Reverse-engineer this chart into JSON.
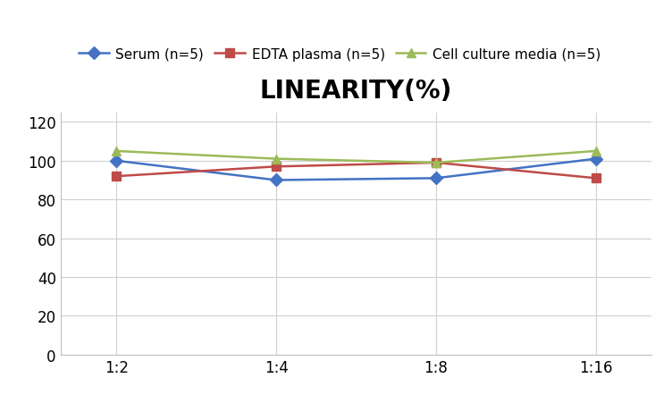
{
  "title": "LINEARITY(%)",
  "x_labels": [
    "1:2",
    "1:4",
    "1:8",
    "1:16"
  ],
  "x_positions": [
    0,
    1,
    2,
    3
  ],
  "series": [
    {
      "label": "Serum (n=5)",
      "values": [
        100,
        90,
        91,
        101
      ],
      "color": "#4472C4",
      "marker": "D",
      "marker_color": "#4472C4"
    },
    {
      "label": "EDTA plasma (n=5)",
      "values": [
        92,
        97,
        99,
        91
      ],
      "color": "#BE4B48",
      "marker": "s",
      "marker_color": "#BE4B48"
    },
    {
      "label": "Cell culture media (n=5)",
      "values": [
        105,
        101,
        99,
        105
      ],
      "color": "#9BBB59",
      "marker": "^",
      "marker_color": "#9BBB59"
    }
  ],
  "ylim": [
    0,
    125
  ],
  "yticks": [
    0,
    20,
    40,
    60,
    80,
    100,
    120
  ],
  "background_color": "#ffffff",
  "title_fontsize": 20,
  "legend_fontsize": 11,
  "tick_fontsize": 12
}
